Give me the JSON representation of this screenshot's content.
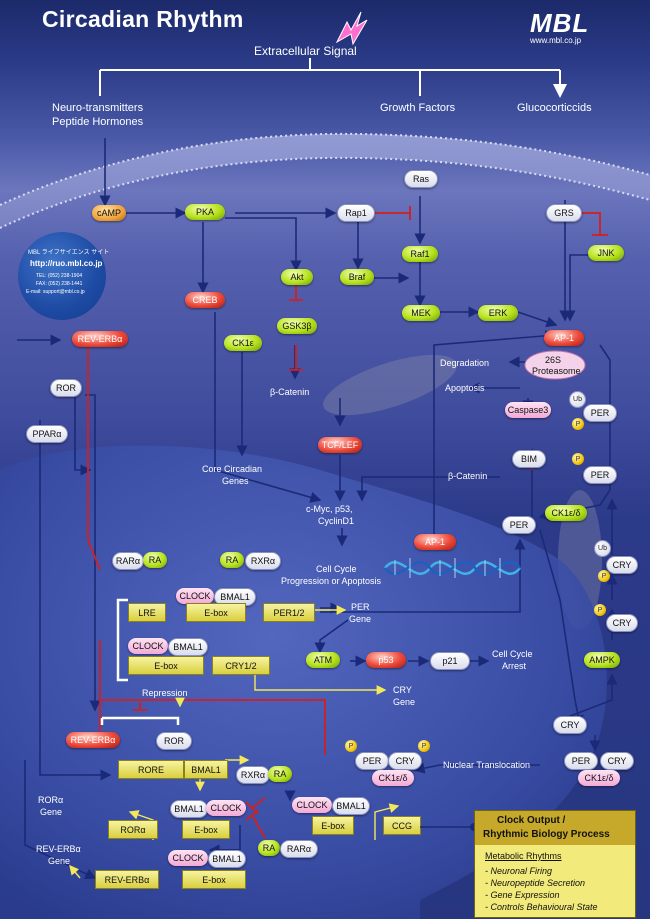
{
  "title": "Circadian Rhythm",
  "brand": {
    "logo": "MBL",
    "url": "www.mbl.co.jp"
  },
  "contact": {
    "line1": "MBL ライフサイエンス サイト",
    "line2": "http://ruo.mbl.co.jp",
    "line3": "TEL: (052) 238-1904",
    "line4": "FAX: (052) 238-1441",
    "line5": "E-mail: support@mbl.co.jp"
  },
  "signals": {
    "extracellular": "Extracellular Signal",
    "neuro_1": "Neuro-transmitters",
    "neuro_2": "Peptide Hormones",
    "growth": "Growth Factors",
    "gluco": "Glucocorticcids"
  },
  "nodes": {
    "ras": "Ras",
    "camp": "cAMP",
    "pka": "PKA",
    "rap1": "Rap1",
    "grs": "GRS",
    "raf1": "Raf1",
    "jnk": "JNK",
    "akt": "Akt",
    "braf": "Braf",
    "creb": "CREB",
    "mek": "MEK",
    "erk": "ERK",
    "gsk3b": "GSK3β",
    "ck1e_top": "CK1ε",
    "ap1_top": "AP-1",
    "rev_erba_top": "REV-ERBα",
    "ror_top": "ROR",
    "ppara": "PPARα",
    "degradation": "Degradation",
    "proteasome_1": "26S",
    "proteasome_2": "Proteasome",
    "apoptosis": "Apoptosis",
    "bcatenin_top": "β-Catenin",
    "caspase3": "Caspase3",
    "ub_1": "Ub",
    "per_1": "PER",
    "p_1": "P",
    "tcf_lef": "TCF/LEF",
    "core_1": "Core Circadian",
    "core_2": "Genes",
    "bim": "BIM",
    "per_2": "PER",
    "p_2": "P",
    "bcatenin_mid": "β-Catenin",
    "cmyc_1": "c-Myc, p53,",
    "cmyc_2": "CyclinD1",
    "ck1ed_mid": "CK1ε/δ",
    "per_mid": "PER",
    "ap1_dna": "AP-1",
    "ub_2": "Ub",
    "p_3": "P",
    "cry_1": "CRY",
    "cellcycle_1": "Cell Cycle",
    "cellcycle_2": "Progression or Apoptosis",
    "rara_l": "RARα",
    "ra_l": "RA",
    "ra_r": "RA",
    "rxra_r": "RXRα",
    "clock_1": "CLOCK",
    "bmal1_1": "BMAL1",
    "p_4": "P",
    "cry_2": "CRY",
    "lre": "LRE",
    "ebox_1": "E-box",
    "per12": "PER1/2",
    "per_gene_1": "PER",
    "per_gene_2": "Gene",
    "clock_2": "CLOCK",
    "bmal1_2": "BMAL1",
    "ebox_2": "E-box",
    "cry12": "CRY1/2",
    "atm": "ATM",
    "p53": "p53",
    "p21": "p21",
    "arrest_1": "Cell Cycle",
    "arrest_2": "Arrest",
    "ampk": "AMPK",
    "cry_gene_1": "CRY",
    "cry_gene_2": "Gene",
    "repression": "Repression",
    "cry_3": "CRY",
    "rev_erba_mid": "REV-ERBα",
    "ror_mid": "ROR",
    "p_5": "P",
    "p_6": "P",
    "per_3": "PER",
    "cry_4": "CRY",
    "ck1ed_3": "CK1ε/δ",
    "per_4": "PER",
    "cry_5": "CRY",
    "ck1ed_4": "CK1ε/δ",
    "rore": "RORE",
    "bmal1_gene": "BMAL1",
    "nuclear_trans": "Nuclear Translocation",
    "rxra_2": "RXRα",
    "ra_2": "RA",
    "rora_gene_1": "RORα",
    "rora_gene_2": "Gene",
    "bmal1_3": "BMAL1",
    "clock_3": "CLOCK",
    "clock_4": "CLOCK",
    "bmal1_4": "BMAL1",
    "rora_box": "RORα",
    "ebox_3": "E-box",
    "ebox_4": "E-box",
    "ccg": "CCG",
    "ra_3": "RA",
    "rara_2": "RARα",
    "reverb_gene_1": "REV-ERBα",
    "reverb_gene_2": "Gene",
    "clock_5": "CLOCK",
    "bmal1_5": "BMAL1",
    "reverb_box": "REV-ERBα",
    "ebox_5": "E-box"
  },
  "legend": {
    "title_1": "Clock Output /",
    "title_2": "Rhythmic Biology Process",
    "subtitle": "Metabolic Rhythms",
    "items": [
      "- Neuronal Firing",
      "- Neuropeptide Secretion",
      "- Gene Expression",
      "- Controls Behavioural State"
    ]
  }
}
